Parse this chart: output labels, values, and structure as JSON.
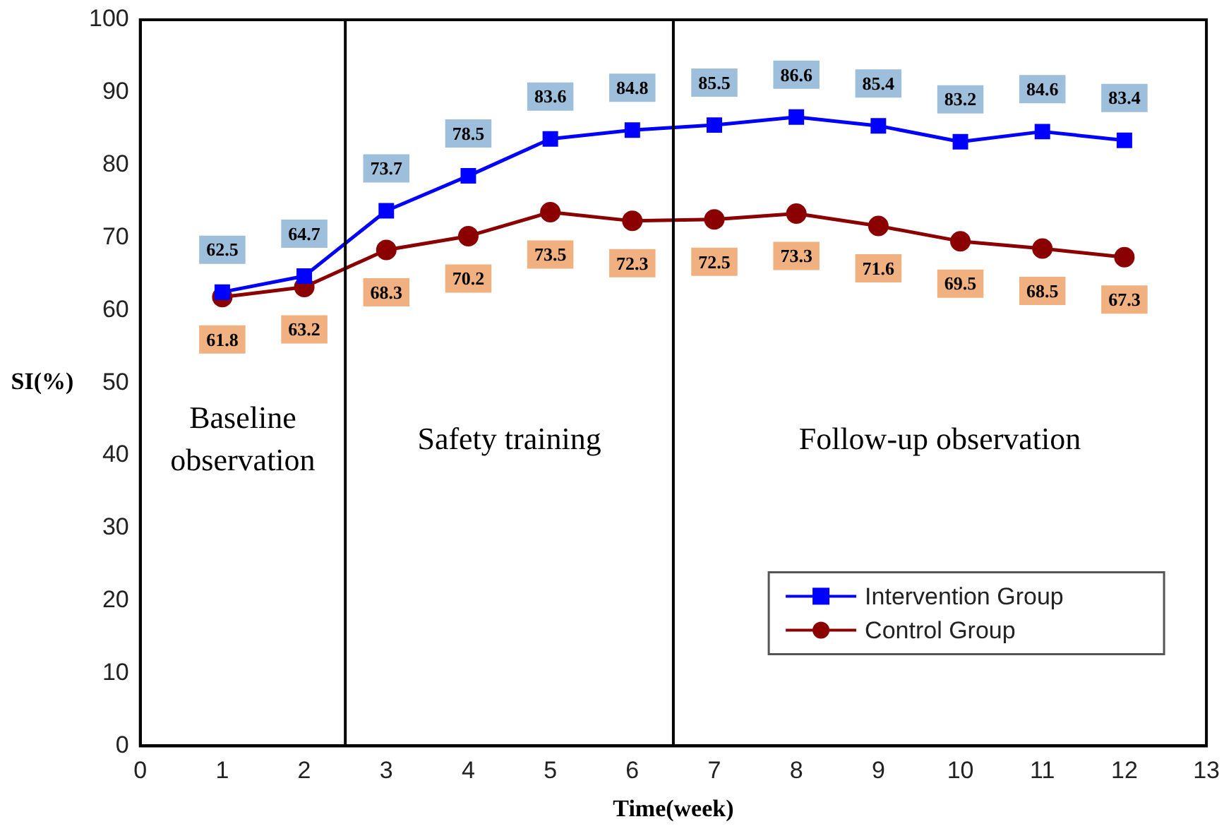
{
  "chart_data": {
    "type": "line",
    "xlabel": "Time(week)",
    "ylabel": "SI(%)",
    "x": [
      1,
      2,
      3,
      4,
      5,
      6,
      7,
      8,
      9,
      10,
      11,
      12
    ],
    "series": [
      {
        "name": "Intervention Group",
        "color": "#0000ff",
        "marker": "square",
        "values": [
          62.5,
          64.7,
          73.7,
          78.5,
          83.6,
          84.8,
          85.5,
          86.6,
          85.4,
          83.2,
          84.6,
          83.4
        ]
      },
      {
        "name": "Control Group",
        "color": "#8b0000",
        "marker": "circle",
        "values": [
          61.8,
          63.2,
          68.3,
          70.2,
          73.5,
          72.3,
          72.5,
          73.3,
          71.6,
          69.5,
          68.5,
          67.3
        ]
      }
    ],
    "xlim": [
      0,
      13
    ],
    "xticks": [
      0,
      1,
      2,
      3,
      4,
      5,
      6,
      7,
      8,
      9,
      10,
      11,
      12,
      13
    ],
    "ylim": [
      0,
      100
    ],
    "yticks": [
      0,
      10,
      20,
      30,
      40,
      50,
      60,
      70,
      80,
      90,
      100
    ],
    "grid": false,
    "legend": "bottom right",
    "data_labels": true,
    "ref_lines": [
      {
        "axis": "x",
        "value": 2.5,
        "color": "#000000"
      },
      {
        "axis": "x",
        "value": 6.5,
        "color": "#000000"
      }
    ],
    "annotations": [
      "Baseline observation",
      "Safety training",
      "Follow-up observation"
    ]
  }
}
